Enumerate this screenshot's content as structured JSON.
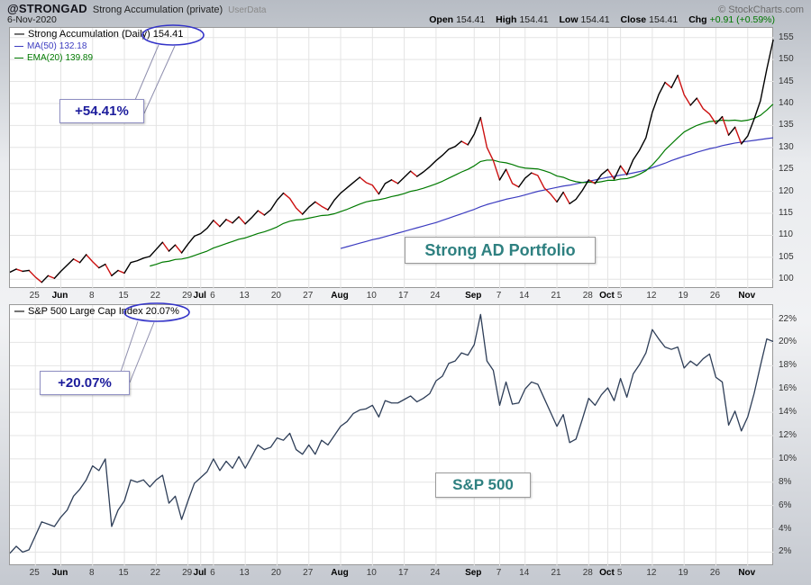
{
  "header": {
    "symbol": "@STRONGAD",
    "title": "Strong Accumulation (private)",
    "suffix": "UserData",
    "copyright": "© StockCharts.com",
    "date": "6-Nov-2020",
    "quote": {
      "open_label": "Open",
      "open": "154.41",
      "high_label": "High",
      "high": "154.41",
      "low_label": "Low",
      "low": "154.41",
      "close_label": "Close",
      "close": "154.41",
      "chg_label": "Chg",
      "chg": "+0.91 (+0.59%)"
    }
  },
  "colors": {
    "price_up": "#000000",
    "price_down": "#cc1111",
    "ma50": "#3c3cc0",
    "ema20": "#007a00",
    "sp500": "#2e3e58",
    "grid": "#e4e4e4",
    "teal_label": "#2e8080",
    "annotation_text": "#1c1c9c",
    "callout": "#3434c8",
    "chg_positive": "#007700"
  },
  "chart_data": [
    {
      "type": "line",
      "title": "Strong Accumulation (Daily)",
      "xlabel": "",
      "ylabel": "",
      "ylim": [
        97.8,
        157.2
      ],
      "y_ticks": [
        155,
        150,
        145,
        140,
        135,
        130,
        125,
        120,
        115,
        110,
        105,
        100
      ],
      "y_suffix": "",
      "grid": true,
      "legend_position": "top-left",
      "annotation": "+54.41%",
      "overlay_label": "Strong AD Portfolio",
      "legend": [
        {
          "label": "Strong Accumulation (Daily)",
          "value": "154.41",
          "color": "#000000"
        },
        {
          "label": "MA(50)",
          "value": "132.18",
          "color": "#3c3cc0"
        },
        {
          "label": "EMA(20)",
          "value": "139.89",
          "color": "#007a00"
        }
      ],
      "x_ticks": [
        {
          "label": "25",
          "i": 4
        },
        {
          "label": "Jun",
          "i": 8
        },
        {
          "label": "8",
          "i": 13
        },
        {
          "label": "15",
          "i": 18
        },
        {
          "label": "22",
          "i": 23
        },
        {
          "label": "29",
          "i": 28
        },
        {
          "label": "Jul",
          "i": 30
        },
        {
          "label": "6",
          "i": 32
        },
        {
          "label": "13",
          "i": 37
        },
        {
          "label": "20",
          "i": 42
        },
        {
          "label": "27",
          "i": 47
        },
        {
          "label": "Aug",
          "i": 52
        },
        {
          "label": "10",
          "i": 57
        },
        {
          "label": "17",
          "i": 62
        },
        {
          "label": "24",
          "i": 67
        },
        {
          "label": "Sep",
          "i": 73
        },
        {
          "label": "7",
          "i": 77
        },
        {
          "label": "14",
          "i": 81
        },
        {
          "label": "21",
          "i": 86
        },
        {
          "label": "28",
          "i": 91
        },
        {
          "label": "Oct",
          "i": 94
        },
        {
          "label": "5",
          "i": 96
        },
        {
          "label": "12",
          "i": 101
        },
        {
          "label": "19",
          "i": 106
        },
        {
          "label": "26",
          "i": 111
        },
        {
          "label": "Nov",
          "i": 116
        }
      ],
      "series": [
        {
          "name": "MA(50)",
          "color": "#3c3cc0",
          "width": 1.2,
          "start": 52,
          "values": [
            107.0,
            107.4,
            107.8,
            108.2,
            108.6,
            109.0,
            109.3,
            109.7,
            110.1,
            110.5,
            110.9,
            111.3,
            111.7,
            112.1,
            112.5,
            112.9,
            113.4,
            113.9,
            114.4,
            114.9,
            115.4,
            115.9,
            116.5,
            117.0,
            117.4,
            117.8,
            118.2,
            118.5,
            118.8,
            119.2,
            119.6,
            120.0,
            120.3,
            120.6,
            120.9,
            121.2,
            121.4,
            121.7,
            122.0,
            122.3,
            122.6,
            122.9,
            123.2,
            123.4,
            123.7,
            123.9,
            124.2,
            124.5,
            124.9,
            125.4,
            125.9,
            126.4,
            127.0,
            127.5,
            128.0,
            128.4,
            128.9,
            129.3,
            129.7,
            130.0,
            130.4,
            130.7,
            131.0,
            131.2,
            131.4,
            131.6,
            131.8,
            132.0,
            132.18
          ]
        },
        {
          "name": "EMA(20)",
          "color": "#007a00",
          "width": 1.2,
          "start": 22,
          "values": [
            103.0,
            103.4,
            103.9,
            104.1,
            104.5,
            104.6,
            104.9,
            105.4,
            105.9,
            106.4,
            107.1,
            107.6,
            108.1,
            108.6,
            109.1,
            109.4,
            109.9,
            110.4,
            110.8,
            111.3,
            111.9,
            112.7,
            113.2,
            113.5,
            113.6,
            113.9,
            114.2,
            114.5,
            114.6,
            114.9,
            115.4,
            115.9,
            116.5,
            117.1,
            117.6,
            117.9,
            118.1,
            118.4,
            118.8,
            119.1,
            119.5,
            120.0,
            120.3,
            120.7,
            121.2,
            121.7,
            122.3,
            123.0,
            123.7,
            124.4,
            125.0,
            125.8,
            126.8,
            127.1,
            127.1,
            126.7,
            126.5,
            126.1,
            125.6,
            125.3,
            125.2,
            125.1,
            124.7,
            124.2,
            123.5,
            123.2,
            122.6,
            122.2,
            122.0,
            122.1,
            122.0,
            122.2,
            122.5,
            122.5,
            122.8,
            122.9,
            123.3,
            123.9,
            124.7,
            126.0,
            127.6,
            129.4,
            130.8,
            132.2,
            133.5,
            134.3,
            135.0,
            135.5,
            135.9,
            136.0,
            136.2,
            136.1,
            136.2,
            136.0,
            136.2,
            136.6,
            137.3,
            138.5,
            139.89
          ]
        },
        {
          "name": "Strong Accumulation (Daily)",
          "color": "#000000",
          "down_color": "#cc1111",
          "two_tone": true,
          "width": 1.4,
          "start": 0,
          "values": [
            101.6,
            102.3,
            101.8,
            102.0,
            100.5,
            99.3,
            100.8,
            100.2,
            101.8,
            103.2,
            104.6,
            103.8,
            105.6,
            104.0,
            102.6,
            103.4,
            100.8,
            102.0,
            101.4,
            103.8,
            104.2,
            104.8,
            105.2,
            106.8,
            108.4,
            106.4,
            107.8,
            106.0,
            108.0,
            109.8,
            110.4,
            111.6,
            113.4,
            112.0,
            113.6,
            112.8,
            114.2,
            112.6,
            114.0,
            115.6,
            114.6,
            115.8,
            118.0,
            119.6,
            118.4,
            116.2,
            114.8,
            116.4,
            117.6,
            116.6,
            115.8,
            118.0,
            119.6,
            120.8,
            122.0,
            123.2,
            122.0,
            121.4,
            119.4,
            121.8,
            122.6,
            121.8,
            123.2,
            124.6,
            123.4,
            124.4,
            125.6,
            127.0,
            128.2,
            129.6,
            130.2,
            131.4,
            130.6,
            133.0,
            136.8,
            130.0,
            127.0,
            122.6,
            125.0,
            121.8,
            121.0,
            123.0,
            124.2,
            123.6,
            120.8,
            119.4,
            117.6,
            119.8,
            117.2,
            118.2,
            120.2,
            122.6,
            121.8,
            123.8,
            125.0,
            122.8,
            125.8,
            123.8,
            127.2,
            129.4,
            132.2,
            138.0,
            142.0,
            144.8,
            143.6,
            146.4,
            142.0,
            139.6,
            141.2,
            138.8,
            137.6,
            135.4,
            137.0,
            132.8,
            134.6,
            130.8,
            132.6,
            136.4,
            140.6,
            147.8,
            154.41
          ]
        }
      ]
    },
    {
      "type": "line",
      "title": "S&P 500 Large Cap Index",
      "xlabel": "",
      "ylabel": "",
      "ylim": [
        0.8,
        23.2
      ],
      "y_ticks": [
        22,
        20,
        18,
        16,
        14,
        12,
        10,
        8,
        6,
        4,
        2
      ],
      "y_suffix": "%",
      "grid": true,
      "legend_position": "top-left",
      "annotation": "+20.07%",
      "overlay_label": "S&P 500",
      "legend": [
        {
          "label": "S&P 500 Large Cap Index",
          "value": "20.07%",
          "color": "#000000"
        }
      ],
      "x_ticks": [
        {
          "label": "25",
          "i": 4
        },
        {
          "label": "Jun",
          "i": 8
        },
        {
          "label": "8",
          "i": 13
        },
        {
          "label": "15",
          "i": 18
        },
        {
          "label": "22",
          "i": 23
        },
        {
          "label": "29",
          "i": 28
        },
        {
          "label": "Jul",
          "i": 30
        },
        {
          "label": "6",
          "i": 32
        },
        {
          "label": "13",
          "i": 37
        },
        {
          "label": "20",
          "i": 42
        },
        {
          "label": "27",
          "i": 47
        },
        {
          "label": "Aug",
          "i": 52
        },
        {
          "label": "10",
          "i": 57
        },
        {
          "label": "17",
          "i": 62
        },
        {
          "label": "24",
          "i": 67
        },
        {
          "label": "Sep",
          "i": 73
        },
        {
          "label": "7",
          "i": 77
        },
        {
          "label": "14",
          "i": 81
        },
        {
          "label": "21",
          "i": 86
        },
        {
          "label": "28",
          "i": 91
        },
        {
          "label": "Oct",
          "i": 94
        },
        {
          "label": "5",
          "i": 96
        },
        {
          "label": "12",
          "i": 101
        },
        {
          "label": "19",
          "i": 106
        },
        {
          "label": "26",
          "i": 111
        },
        {
          "label": "Nov",
          "i": 116
        }
      ],
      "series": [
        {
          "name": "S&P 500 % change",
          "color": "#2e3e58",
          "width": 1.3,
          "start": 0,
          "values": [
            1.9,
            2.5,
            2.0,
            2.2,
            3.4,
            4.6,
            4.4,
            4.2,
            5.0,
            5.6,
            6.8,
            7.4,
            8.2,
            9.4,
            9.0,
            10.0,
            4.2,
            5.6,
            6.4,
            8.2,
            8.0,
            8.2,
            7.6,
            8.2,
            8.6,
            6.2,
            6.8,
            4.8,
            6.4,
            7.9,
            8.4,
            8.9,
            10.0,
            9.0,
            9.8,
            9.2,
            10.2,
            9.2,
            10.2,
            11.2,
            10.8,
            11.0,
            11.8,
            11.6,
            12.2,
            10.8,
            10.4,
            11.2,
            10.4,
            11.6,
            11.2,
            12.0,
            12.8,
            13.2,
            13.9,
            14.2,
            14.3,
            14.6,
            13.6,
            15.0,
            14.8,
            14.8,
            15.1,
            15.4,
            14.9,
            15.2,
            15.6,
            16.7,
            17.1,
            18.2,
            18.4,
            19.1,
            18.9,
            19.8,
            22.4,
            18.4,
            17.6,
            14.6,
            16.6,
            14.7,
            14.8,
            16.0,
            16.6,
            16.4,
            15.2,
            14.0,
            12.8,
            13.8,
            11.4,
            11.7,
            13.4,
            15.2,
            14.6,
            15.5,
            16.1,
            15.0,
            16.9,
            15.3,
            17.3,
            18.1,
            19.1,
            21.1,
            20.3,
            19.6,
            19.4,
            19.6,
            17.8,
            18.4,
            18.0,
            18.6,
            19.0,
            17.0,
            16.6,
            12.9,
            14.1,
            12.4,
            13.6,
            15.6,
            18.0,
            20.3,
            20.07
          ]
        }
      ]
    }
  ]
}
